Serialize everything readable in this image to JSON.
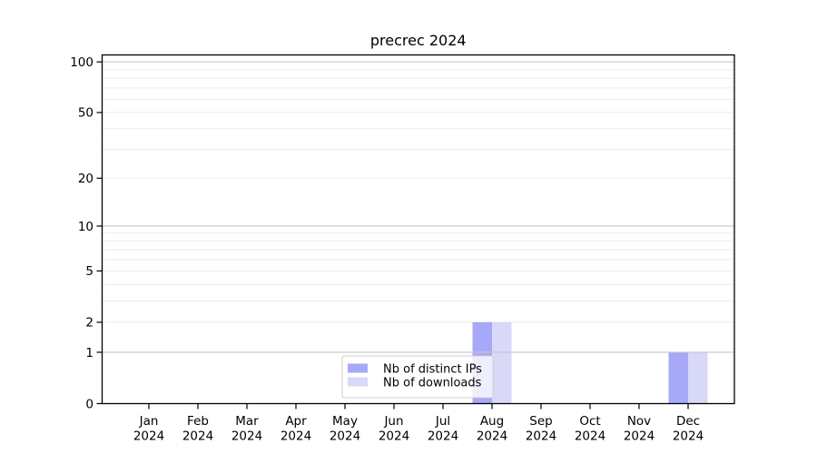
{
  "figure": {
    "background": "#ffffff"
  },
  "chart_data": {
    "type": "bar",
    "title": "precrec 2024",
    "categories": [
      "Jan",
      "Feb",
      "Mar",
      "Apr",
      "May",
      "Jun",
      "Jul",
      "Aug",
      "Sep",
      "Oct",
      "Nov",
      "Dec"
    ],
    "category_sub_label": "2024",
    "series": [
      {
        "name": "Nb of distinct IPs",
        "color": "#a8a8f8",
        "values": [
          0,
          0,
          0,
          0,
          0,
          0,
          0,
          2,
          0,
          0,
          0,
          1
        ]
      },
      {
        "name": "Nb of downloads",
        "color": "#d8d8f8",
        "values": [
          0,
          0,
          0,
          0,
          0,
          0,
          0,
          2,
          0,
          0,
          0,
          1
        ]
      }
    ],
    "y_axis": {
      "scale": "log10(1+value)",
      "ticks": [
        0,
        1,
        2,
        5,
        10,
        20,
        50,
        100
      ],
      "range": [
        0,
        110
      ],
      "emphasized_gridlines": [
        1,
        10,
        100
      ],
      "light_gridlines": [
        2,
        3,
        4,
        5,
        6,
        7,
        8,
        9,
        20,
        30,
        40,
        50,
        60,
        70,
        80,
        90
      ]
    },
    "legend": {
      "location": "inside bottom-center"
    },
    "colors": {
      "grid_major": "#c6c6c6",
      "grid_minor": "#ebebeb",
      "axis": "#000000",
      "legend_border": "#cccccc",
      "legend_fill": "rgba(255,255,255,0.8)"
    }
  }
}
